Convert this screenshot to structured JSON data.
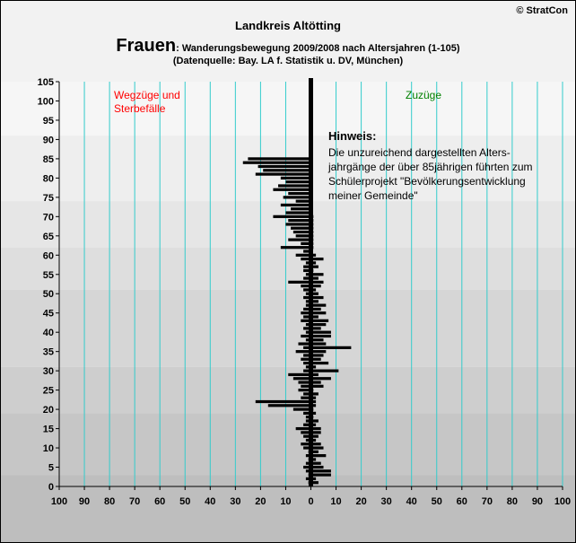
{
  "header": {
    "title": "Landkreis Altötting",
    "subtitle_big": "Frauen",
    "subtitle_rest": ": Wanderungsbewegung 2009/2008 nach Altersjahren (1-105)",
    "source": "(Datenquelle: Bay. LA f. Statistik u. DV, München)",
    "copyright": "© StratCon"
  },
  "colors": {
    "frame_bg": "#f2f2f2",
    "gridline": "#33cccc",
    "bar": "#000000",
    "label_left": "#ff0000",
    "label_right": "#008000",
    "band_shades": [
      "#bebebe",
      "#c6c6c6",
      "#cecece",
      "#d6d6d6",
      "#dedede",
      "#e6e6e6",
      "#eeeeee",
      "#f6f6f6"
    ]
  },
  "chart_data": {
    "type": "bar",
    "orientation": "horizontal",
    "xlim": [
      -100,
      100
    ],
    "ylim": [
      0,
      105
    ],
    "x_ticks": [
      -100,
      -90,
      -80,
      -70,
      -60,
      -50,
      -40,
      -30,
      -20,
      -10,
      0,
      10,
      20,
      30,
      40,
      50,
      60,
      70,
      80,
      90,
      100
    ],
    "x_tick_labels": [
      "100",
      "90",
      "80",
      "70",
      "60",
      "50",
      "40",
      "30",
      "20",
      "10",
      "0",
      "10",
      "20",
      "30",
      "40",
      "50",
      "60",
      "70",
      "80",
      "90",
      "100"
    ],
    "y_ticks": [
      0,
      5,
      10,
      15,
      20,
      25,
      30,
      35,
      40,
      45,
      50,
      55,
      60,
      65,
      70,
      75,
      80,
      85,
      90,
      95,
      100,
      105
    ],
    "grid": true,
    "age_bands": [
      0,
      3,
      19,
      31,
      51,
      62,
      74,
      91,
      105
    ],
    "label_left": "Wegzüge und\nSterbefälle",
    "label_right": "Zuzüge",
    "note_title": "Hinweis:",
    "note_text": "Die unzureichend dargestellten Alters-\njahrgänge der über 85jährigen führten zum\nSchülerprojekt \"Bevölkerungsentwicklung\nmeiner Gemeinde\"",
    "series": [
      {
        "name": "Zuzüge",
        "ages": [
          1,
          2,
          3,
          4,
          5,
          6,
          7,
          8,
          9,
          10,
          11,
          12,
          13,
          14,
          15,
          16,
          17,
          18,
          19,
          20,
          21,
          22,
          23,
          24,
          25,
          26,
          27,
          28,
          29,
          30,
          31,
          32,
          33,
          34,
          35,
          36,
          37,
          38,
          39,
          40,
          41,
          42,
          43,
          44,
          45,
          46,
          47,
          48,
          49,
          50,
          51,
          52,
          53,
          54,
          55,
          56,
          57,
          58,
          59,
          60,
          61,
          62,
          63,
          64,
          65,
          66,
          67,
          68,
          69,
          70
        ],
        "values": [
          3,
          2,
          8,
          8,
          5,
          4,
          2,
          6,
          3,
          5,
          4,
          2,
          3,
          4,
          4,
          2,
          3,
          1,
          2,
          1,
          2,
          2,
          2,
          3,
          1,
          5,
          4,
          8,
          3,
          11,
          2,
          7,
          4,
          5,
          6,
          16,
          6,
          5,
          8,
          8,
          4,
          6,
          7,
          3,
          6,
          4,
          6,
          3,
          5,
          3,
          2,
          4,
          5,
          3,
          5,
          1,
          3,
          2,
          5,
          2,
          0,
          1,
          1,
          1,
          1,
          1,
          1,
          1,
          1,
          1
        ]
      },
      {
        "name": "Wegzüge und Sterbefälle",
        "ages": [
          1,
          2,
          3,
          4,
          5,
          6,
          7,
          8,
          9,
          10,
          11,
          12,
          13,
          14,
          15,
          16,
          17,
          18,
          19,
          20,
          21,
          22,
          23,
          24,
          25,
          26,
          27,
          28,
          29,
          30,
          31,
          32,
          33,
          34,
          35,
          36,
          37,
          38,
          39,
          40,
          41,
          42,
          43,
          44,
          45,
          46,
          47,
          48,
          49,
          50,
          51,
          52,
          53,
          54,
          55,
          56,
          57,
          58,
          59,
          60,
          61,
          62,
          63,
          64,
          65,
          66,
          67,
          68,
          69,
          70,
          71,
          72,
          73,
          74,
          75,
          76,
          77,
          78,
          79,
          80,
          81,
          82,
          83,
          84,
          85
        ],
        "values": [
          1,
          2,
          1,
          2,
          3,
          2,
          1,
          2,
          1,
          3,
          4,
          2,
          3,
          4,
          6,
          3,
          2,
          2,
          3,
          7,
          17,
          22,
          4,
          3,
          5,
          4,
          5,
          7,
          9,
          3,
          2,
          3,
          4,
          3,
          6,
          3,
          5,
          2,
          4,
          2,
          3,
          2,
          4,
          3,
          4,
          3,
          2,
          2,
          3,
          2,
          3,
          4,
          9,
          3,
          2,
          3,
          3,
          2,
          4,
          6,
          3,
          12,
          4,
          9,
          6,
          7,
          8,
          10,
          9,
          15,
          10,
          8,
          12,
          6,
          11,
          9,
          15,
          13,
          10,
          12,
          22,
          19,
          21,
          27,
          25
        ]
      }
    ]
  }
}
